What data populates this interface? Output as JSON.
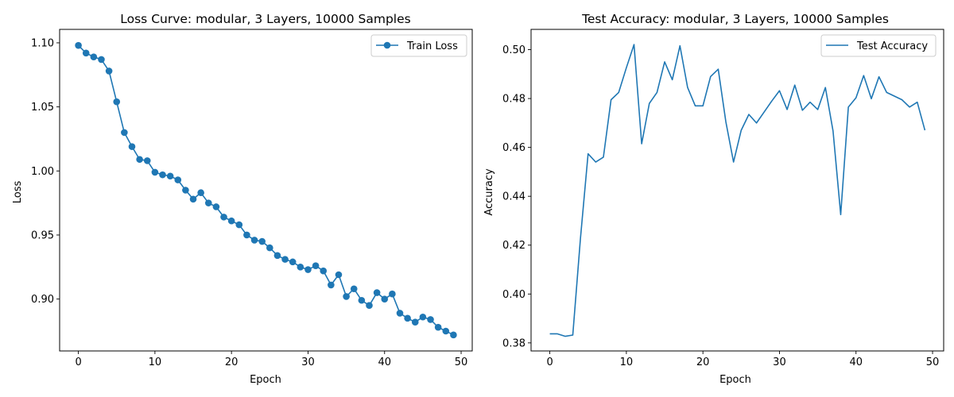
{
  "chart_data": [
    {
      "type": "line",
      "title": "Loss Curve: modular, 3 Layers, 10000 Samples",
      "xlabel": "Epoch",
      "ylabel": "Loss",
      "xlim": [
        -2.45,
        51.45
      ],
      "ylim": [
        0.8595,
        1.1105
      ],
      "xticks": [
        0,
        10,
        20,
        30,
        40,
        50
      ],
      "yticks": [
        0.9,
        0.95,
        1.0,
        1.05,
        1.1
      ],
      "ytick_labels": [
        "0.90",
        "0.95",
        "1.00",
        "1.05",
        "1.10"
      ],
      "legend_position": "upper right",
      "marker": "circle",
      "color": "#1f77b4",
      "x": [
        0,
        1,
        2,
        3,
        4,
        5,
        6,
        7,
        8,
        9,
        10,
        11,
        12,
        13,
        14,
        15,
        16,
        17,
        18,
        19,
        20,
        21,
        22,
        23,
        24,
        25,
        26,
        27,
        28,
        29,
        30,
        31,
        32,
        33,
        34,
        35,
        36,
        37,
        38,
        39,
        40,
        41,
        42,
        43,
        44,
        45,
        46,
        47,
        48,
        49
      ],
      "series": [
        {
          "name": "Train Loss",
          "values": [
            1.098,
            1.092,
            1.089,
            1.087,
            1.078,
            1.054,
            1.03,
            1.019,
            1.009,
            1.008,
            0.999,
            0.997,
            0.996,
            0.993,
            0.985,
            0.978,
            0.983,
            0.975,
            0.972,
            0.964,
            0.961,
            0.958,
            0.95,
            0.946,
            0.945,
            0.94,
            0.934,
            0.931,
            0.929,
            0.925,
            0.923,
            0.926,
            0.922,
            0.911,
            0.919,
            0.902,
            0.908,
            0.899,
            0.895,
            0.905,
            0.9,
            0.904,
            0.889,
            0.885,
            0.882,
            0.886,
            0.884,
            0.878,
            0.875,
            0.872
          ]
        }
      ]
    },
    {
      "type": "line",
      "title": "Test Accuracy: modular, 3 Layers, 10000 Samples",
      "xlabel": "Epoch",
      "ylabel": "Accuracy",
      "xlim": [
        -2.45,
        51.45
      ],
      "ylim": [
        0.3767,
        0.5083
      ],
      "xticks": [
        0,
        10,
        20,
        30,
        40,
        50
      ],
      "yticks": [
        0.38,
        0.4,
        0.42,
        0.44,
        0.46,
        0.48,
        0.5
      ],
      "ytick_labels": [
        "0.38",
        "0.40",
        "0.42",
        "0.44",
        "0.46",
        "0.48",
        "0.50"
      ],
      "legend_position": "upper right",
      "marker": "none",
      "color": "#1f77b4",
      "x": [
        0,
        1,
        2,
        3,
        4,
        5,
        6,
        7,
        8,
        9,
        10,
        11,
        12,
        13,
        14,
        15,
        16,
        17,
        18,
        19,
        20,
        21,
        22,
        23,
        24,
        25,
        26,
        27,
        28,
        29,
        30,
        31,
        32,
        33,
        34,
        35,
        36,
        37,
        38,
        39,
        40,
        41,
        42,
        43,
        44,
        45,
        46,
        47,
        48,
        49
      ],
      "series": [
        {
          "name": "Test Accuracy",
          "values": [
            0.3837,
            0.3837,
            0.3827,
            0.3832,
            0.4227,
            0.4574,
            0.454,
            0.456,
            0.4795,
            0.4825,
            0.4926,
            0.5021,
            0.4615,
            0.478,
            0.4825,
            0.495,
            0.4877,
            0.5016,
            0.4845,
            0.477,
            0.477,
            0.489,
            0.492,
            0.4704,
            0.454,
            0.467,
            0.4735,
            0.47,
            0.4745,
            0.479,
            0.4832,
            0.4755,
            0.4855,
            0.4752,
            0.4785,
            0.4755,
            0.4845,
            0.4667,
            0.4325,
            0.4765,
            0.4803,
            0.4894,
            0.4799,
            0.4889,
            0.4825,
            0.481,
            0.4795,
            0.4765,
            0.4785,
            0.467
          ]
        }
      ]
    }
  ]
}
